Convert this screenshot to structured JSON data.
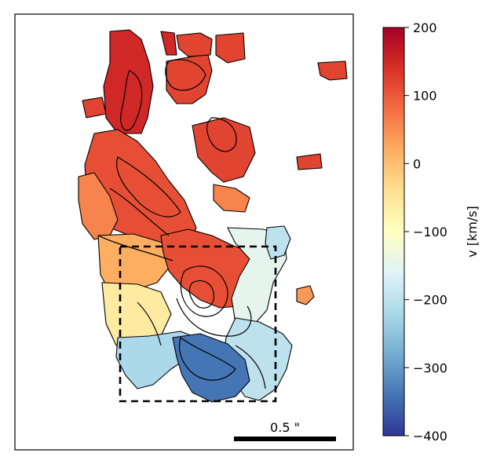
{
  "chart_data": {
    "type": "heatmap",
    "title": "",
    "colorbar": {
      "label": "v [km/s]",
      "range": [
        -400,
        200
      ],
      "ticks": [
        200,
        100,
        0,
        -100,
        -200,
        -300,
        -400
      ],
      "tick_labels": [
        "200",
        "100",
        "0",
        "−100",
        "−200",
        "−300",
        "−400"
      ],
      "colormap": "RdYlBu_r",
      "colormap_stops": [
        "#313695",
        "#4575b4",
        "#74add1",
        "#abd9e9",
        "#e0f3f8",
        "#ffffbf",
        "#fee090",
        "#fdae61",
        "#f46d43",
        "#d73027",
        "#a50026"
      ]
    },
    "map_axes": {
      "ticks": "none",
      "grid": false
    },
    "scale_bar": {
      "label": "0.5 \"",
      "length_arcsec": 0.5,
      "placement": "bottom-right"
    },
    "region_box": {
      "style": "dashed",
      "color": "#000000"
    },
    "velocity_regions": [
      {
        "name": "north-tip",
        "v": 150
      },
      {
        "name": "north-east-clumps",
        "v": 120
      },
      {
        "name": "upper-arm",
        "v": 110
      },
      {
        "name": "mid-arm",
        "v": 60
      },
      {
        "name": "lower-arm",
        "v": 20
      },
      {
        "name": "center-west",
        "v": -60
      },
      {
        "name": "center-core",
        "v": 110
      },
      {
        "name": "center-east",
        "v": -150
      },
      {
        "name": "south-middle",
        "v": -220
      },
      {
        "name": "south-east",
        "v": -200
      },
      {
        "name": "south-core",
        "v": -340
      },
      {
        "name": "east-blob",
        "v": 40
      },
      {
        "name": "ne-blob",
        "v": -200
      }
    ]
  }
}
